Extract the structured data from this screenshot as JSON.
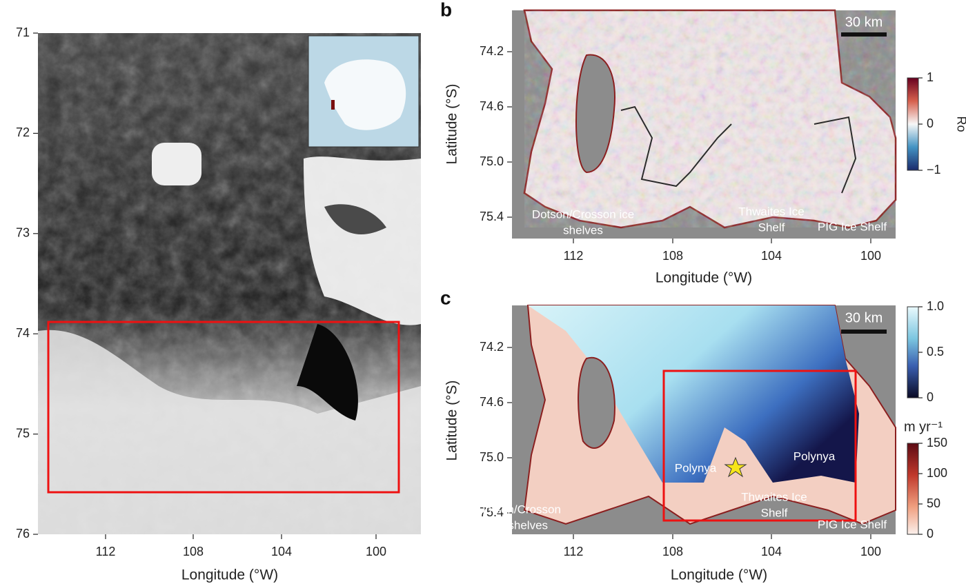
{
  "panel_a": {
    "yticks": [
      71,
      72,
      73,
      74,
      75,
      76
    ],
    "xticks": [
      112,
      108,
      104,
      100
    ],
    "xlabel": "Longitude (°W)"
  },
  "panel_b": {
    "letter": "b",
    "ylabel": "Latitude (°S)",
    "xlabel": "Longitude (°W)",
    "yticks": [
      74.2,
      74.6,
      {
        "value": 75.0,
        "label": "75.0"
      },
      75.4
    ],
    "xticks": [
      112,
      108,
      104,
      100
    ],
    "scale_bar": "30 km",
    "annotations": [
      {
        "lines": [
          "Dotson/Crosson ice",
          "shelves"
        ]
      },
      {
        "lines": [
          "Thwaites Ice",
          "Shelf"
        ]
      },
      {
        "lines": [
          "PIG Ice Shelf"
        ]
      }
    ],
    "colorbar": {
      "label": "Ro",
      "ticks": [
        1,
        0,
        {
          "value": -1,
          "label": "−1"
        }
      ]
    }
  },
  "panel_c": {
    "letter": "c",
    "ylabel": "Latitude (°S)",
    "xlabel": "Longitude (°W)",
    "yticks": [
      74.2,
      74.6,
      {
        "value": 75.0,
        "label": "75.0"
      },
      75.4
    ],
    "xticks": [
      112,
      108,
      104,
      100
    ],
    "scale_bar": "30 km",
    "annotations": [
      {
        "lines": [
          "Polynya"
        ]
      },
      {
        "lines": [
          "Polynya"
        ]
      },
      {
        "lines": [
          "Thwaites Ice",
          "Shelf"
        ]
      },
      {
        "lines": [
          "PIG Ice Shelf"
        ]
      },
      {
        "lines": [
          "Dotson/Crosson",
          "ice shelves"
        ]
      }
    ],
    "colorbar_ice": {
      "ticks": [
        {
          "value": 1.0,
          "label": "1.0"
        },
        0.5,
        0
      ]
    },
    "colorbar_melt": {
      "unit": "m yr⁻¹",
      "ticks": [
        150,
        100,
        50,
        0
      ]
    }
  }
}
